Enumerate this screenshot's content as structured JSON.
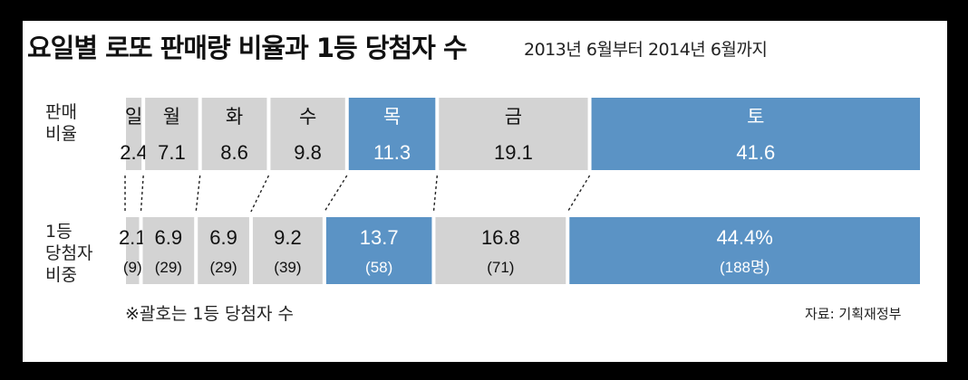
{
  "title": "요일별 로또 판매량 비율과 1등 당첨자 수",
  "subtitle": "2013년 6월부터 2014년 6월까지",
  "footnote": "※괄호는 1등 당첨자 수",
  "source": "자료: 기획재정부",
  "colors": {
    "gray": "#d3d3d3",
    "blue": "#5b93c5",
    "text": "#111111",
    "white": "#ffffff"
  },
  "chart_data": {
    "type": "bar",
    "categories": [
      "일",
      "월",
      "화",
      "수",
      "목",
      "금",
      "토"
    ],
    "highlight": [
      "목",
      "토"
    ],
    "series": [
      {
        "name": "판매 비율",
        "values": [
          2.4,
          7.1,
          8.6,
          9.8,
          11.3,
          19.1,
          41.6
        ]
      },
      {
        "name": "1등 당첨자 비중",
        "values": [
          2.1,
          6.9,
          6.9,
          9.2,
          13.7,
          16.8,
          44.4
        ],
        "value_labels": [
          "2.1",
          "6.9",
          "6.9",
          "9.2",
          "13.7",
          "16.8",
          "44.4%"
        ],
        "winners": [
          "(9)",
          "(29)",
          "(29)",
          "(39)",
          "(58)",
          "(71)",
          "(188명)"
        ]
      }
    ],
    "row_labels": [
      [
        "판매",
        "비율"
      ],
      [
        "1등",
        "당첨자",
        "비중"
      ]
    ]
  }
}
